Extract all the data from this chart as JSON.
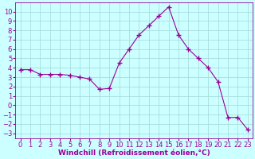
{
  "x": [
    0,
    1,
    2,
    3,
    4,
    5,
    6,
    7,
    8,
    9,
    10,
    11,
    12,
    13,
    14,
    15,
    16,
    17,
    18,
    19,
    20,
    21,
    22,
    23
  ],
  "y": [
    3.8,
    3.8,
    3.3,
    3.3,
    3.3,
    3.2,
    3.0,
    2.8,
    1.7,
    1.8,
    4.5,
    6.0,
    7.5,
    8.5,
    9.5,
    10.5,
    7.5,
    6.0,
    5.0,
    4.0,
    2.5,
    -1.3,
    -1.3,
    -2.6
  ],
  "line_color": "#990099",
  "marker": "+",
  "marker_size": 4,
  "bg_color": "#ccffff",
  "grid_color": "#aadddd",
  "xlabel": "Windchill (Refroidissement éolien,°C)",
  "label_color": "#990099",
  "tick_color": "#990099",
  "xlabel_fontsize": 6.5,
  "tick_fontsize": 6,
  "xlim": [
    -0.5,
    23.5
  ],
  "ylim": [
    -3.5,
    11
  ],
  "yticks": [
    -3,
    -2,
    -1,
    0,
    1,
    2,
    3,
    4,
    5,
    6,
    7,
    8,
    9,
    10
  ],
  "xticks": [
    0,
    1,
    2,
    3,
    4,
    5,
    6,
    7,
    8,
    9,
    10,
    11,
    12,
    13,
    14,
    15,
    16,
    17,
    18,
    19,
    20,
    21,
    22,
    23
  ]
}
